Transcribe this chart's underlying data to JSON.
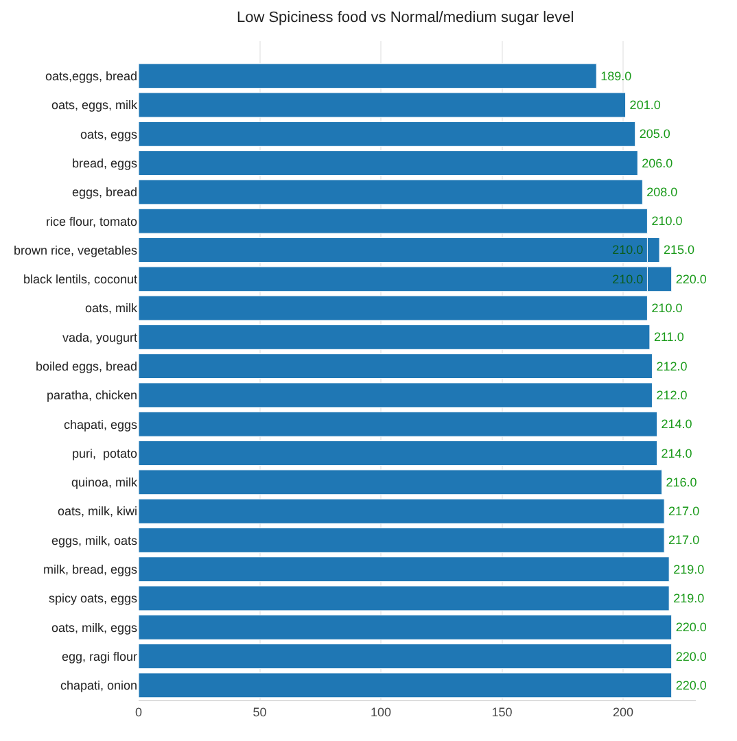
{
  "chart_data": {
    "type": "bar",
    "orientation": "horizontal",
    "title": "Low Spiciness food vs Normal/medium sugar level",
    "categories": [
      "oats,eggs, bread",
      "oats, eggs, milk",
      "oats, eggs",
      "bread, eggs",
      "eggs, bread",
      "rice flour, tomato",
      "brown rice, vegetables",
      "black lentils, coconut",
      "oats, milk",
      "vada, yougurt",
      "boiled eggs, bread",
      "paratha, chicken",
      "chapati, eggs",
      "puri,  potato",
      "quinoa, milk",
      "oats, milk, kiwi",
      "eggs, milk, oats",
      "milk, bread, eggs",
      "spicy oats, eggs",
      "oats, milk, eggs",
      "egg, ragi flour",
      "chapati, onion"
    ],
    "series": [
      {
        "color": "#1f77b4",
        "values": [
          189,
          201,
          205,
          206,
          208,
          210,
          215,
          220,
          210,
          211,
          212,
          212,
          214,
          214,
          216,
          217,
          217,
          219,
          219,
          220,
          220,
          220
        ],
        "value_labels": [
          "189.0",
          "201.0",
          "205.0",
          "206.0",
          "208.0",
          "210.0",
          "215.0",
          "220.0",
          "210.0",
          "211.0",
          "212.0",
          "212.0",
          "214.0",
          "214.0",
          "216.0",
          "217.0",
          "217.0",
          "219.0",
          "219.0",
          "220.0",
          "220.0",
          "220.0"
        ]
      },
      {
        "color": "#1f77b4",
        "values": [
          null,
          null,
          null,
          null,
          null,
          null,
          210,
          210,
          null,
          null,
          null,
          null,
          null,
          null,
          null,
          null,
          null,
          null,
          null,
          null,
          null,
          null
        ],
        "value_labels": [
          null,
          null,
          null,
          null,
          null,
          null,
          "210.0",
          "210.0",
          null,
          null,
          null,
          null,
          null,
          null,
          null,
          null,
          null,
          null,
          null,
          null,
          null,
          null
        ]
      }
    ],
    "xlim": [
      0,
      230
    ],
    "xticks": [
      0,
      50,
      100,
      150,
      200
    ],
    "grid": "x",
    "legend": false
  }
}
